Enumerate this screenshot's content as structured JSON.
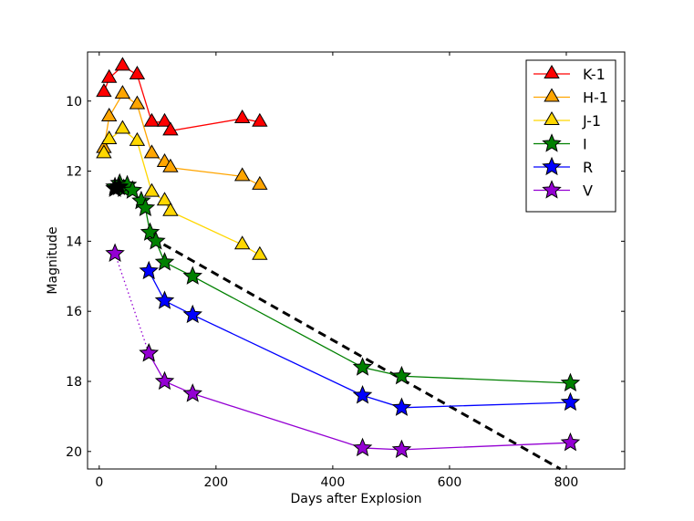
{
  "chart_data": {
    "type": "line",
    "title": "",
    "xlabel": "Days after Explosion",
    "ylabel": "Magnitude",
    "xlim": [
      -20,
      900
    ],
    "ylim": [
      20.5,
      8.6
    ],
    "y_inverted": true,
    "xticks": [
      0,
      200,
      400,
      600,
      800
    ],
    "yticks": [
      10,
      12,
      14,
      16,
      18,
      20
    ],
    "grid": false,
    "legend_placement": "top-right",
    "series": [
      {
        "name": "K-1",
        "color": "#ff0000",
        "marker": "triangle",
        "line": "solid",
        "x": [
          8,
          17,
          40,
          65,
          90,
          112,
          122,
          245,
          275
        ],
        "y": [
          9.75,
          9.35,
          9.0,
          9.25,
          10.6,
          10.6,
          10.85,
          10.5,
          10.6
        ]
      },
      {
        "name": "H-1",
        "color": "#ffa500",
        "marker": "triangle",
        "line": "solid",
        "x": [
          8,
          17,
          40,
          65,
          90,
          112,
          122,
          245,
          275
        ],
        "y": [
          11.35,
          10.45,
          9.8,
          10.1,
          11.5,
          11.75,
          11.9,
          12.15,
          12.4
        ]
      },
      {
        "name": "J-1",
        "color": "#ffd700",
        "marker": "triangle",
        "line": "solid",
        "x": [
          8,
          17,
          40,
          65,
          90,
          112,
          122,
          245,
          275
        ],
        "y": [
          11.5,
          11.1,
          10.8,
          11.15,
          12.6,
          12.85,
          13.15,
          14.1,
          14.4
        ]
      },
      {
        "name": "I",
        "color": "#008000",
        "marker": "star",
        "line": "solid",
        "x": [
          27,
          35,
          42,
          48,
          57,
          72,
          79,
          87,
          97,
          112,
          160,
          451,
          518,
          807
        ],
        "y": [
          12.45,
          12.35,
          12.5,
          12.4,
          12.55,
          12.85,
          13.05,
          13.75,
          14.0,
          14.6,
          15.0,
          17.6,
          17.85,
          18.05
        ]
      },
      {
        "name": "R",
        "color": "#0000ff",
        "marker": "star",
        "line": "solid",
        "x": [
          85,
          112,
          160,
          451,
          518,
          807
        ],
        "y": [
          14.85,
          15.7,
          16.1,
          18.4,
          18.75,
          18.6
        ]
      },
      {
        "name": "V",
        "color": "#9400d3",
        "marker": "star",
        "line": "solid",
        "x": [
          85,
          112,
          160,
          451,
          518,
          807
        ],
        "y": [
          17.2,
          18.0,
          18.35,
          19.9,
          19.95,
          19.75
        ]
      },
      {
        "name": "",
        "color": "#9400d3",
        "marker": "star",
        "line": "dotted",
        "x": [
          27,
          85
        ],
        "y": [
          14.35,
          17.2
        ]
      }
    ],
    "extra_markers": {
      "color": "#000000",
      "marker": "star",
      "x": [
        27,
        34
      ],
      "y": [
        12.5,
        12.45
      ]
    },
    "reference_line": {
      "color": "#000000",
      "line": "dashed",
      "x": [
        90,
        790
      ],
      "y": [
        13.9,
        20.5
      ]
    }
  }
}
